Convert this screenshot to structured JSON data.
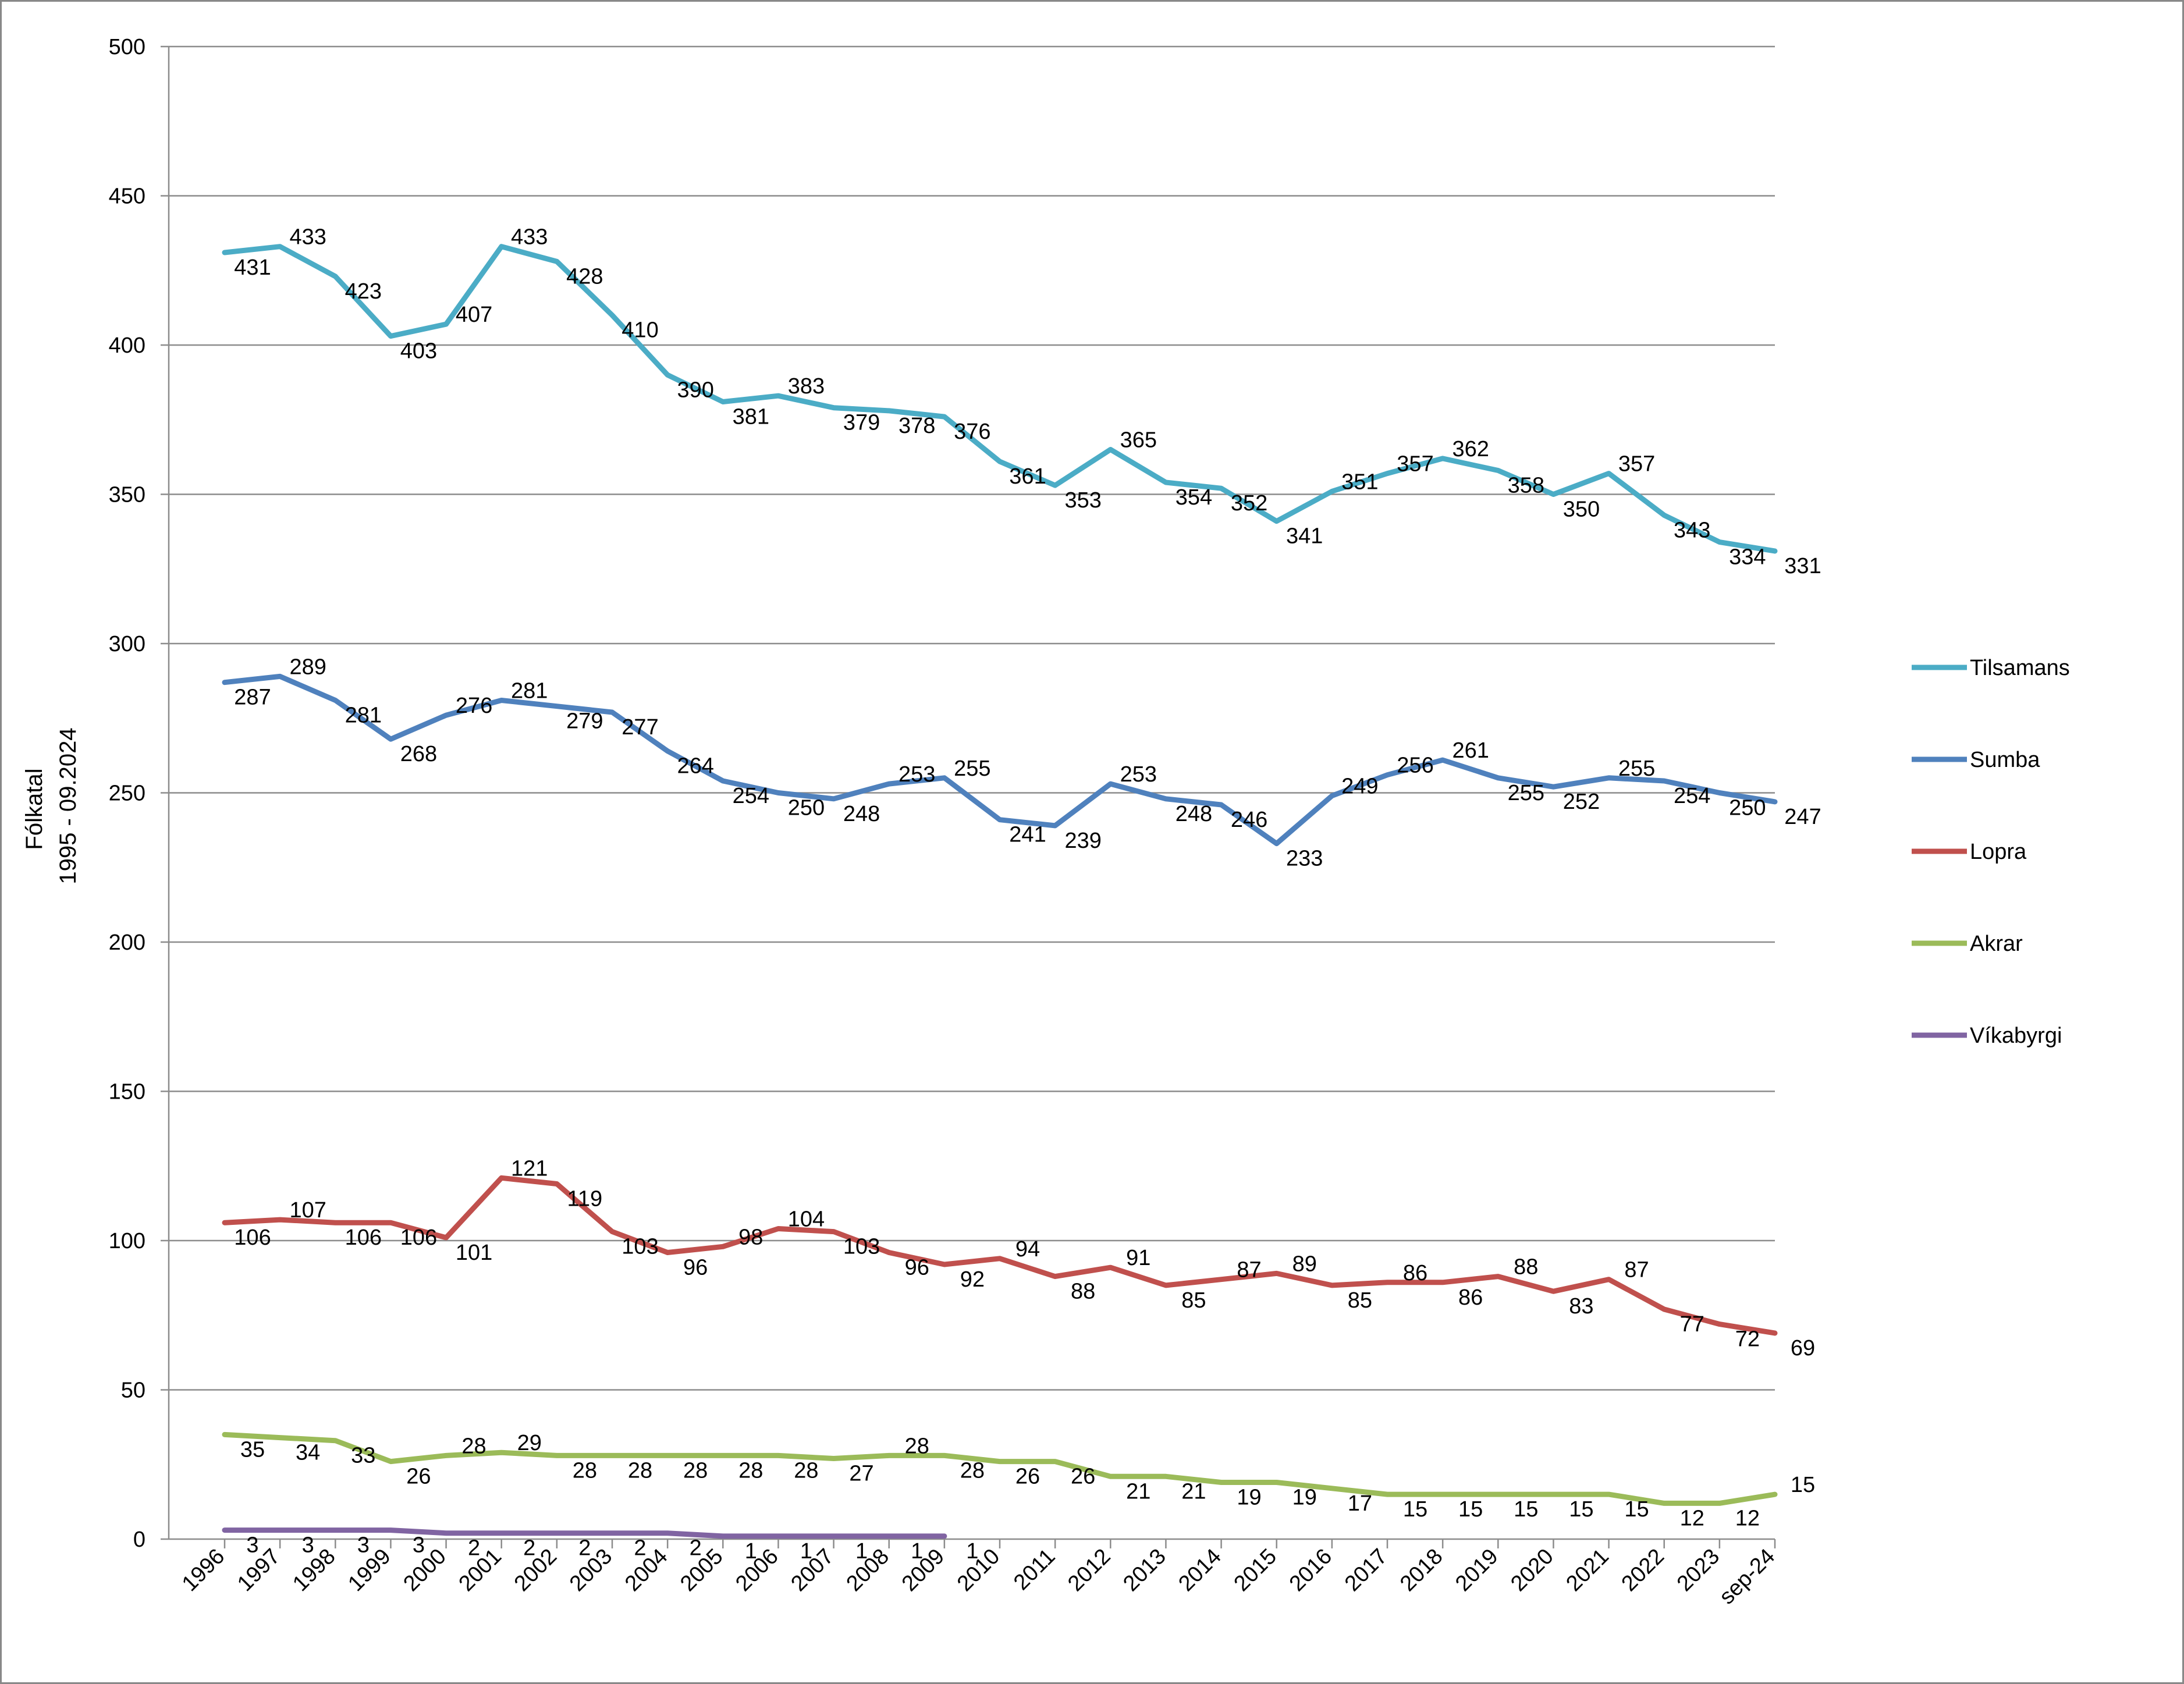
{
  "chart_data": {
    "type": "line",
    "title": "",
    "ylabel": [
      "Fólkatal",
      "1995 - 09.2024"
    ],
    "xlabel": "",
    "ylim": [
      0,
      500
    ],
    "yticks": [
      0,
      50,
      100,
      150,
      200,
      250,
      300,
      350,
      400,
      450,
      500
    ],
    "grid": true,
    "legend_position": "right",
    "categories": [
      "1996",
      "1997",
      "1998",
      "1999",
      "2000",
      "2001",
      "2002",
      "2003",
      "2004",
      "2005",
      "2006",
      "2007",
      "2008",
      "2009",
      "2010",
      "2011",
      "2012",
      "2013",
      "2014",
      "2015",
      "2016",
      "2017",
      "2018",
      "2019",
      "2020",
      "2021",
      "2022",
      "2023",
      "sep-24"
    ],
    "series": [
      {
        "name": "Tilsamans",
        "color": "#4BACC6",
        "values": [
          431,
          433,
          423,
          403,
          407,
          433,
          428,
          410,
          390,
          381,
          383,
          379,
          378,
          376,
          361,
          353,
          365,
          354,
          352,
          341,
          351,
          357,
          362,
          358,
          350,
          357,
          343,
          334,
          331
        ]
      },
      {
        "name": "Sumba",
        "color": "#4F81BD",
        "values": [
          287,
          289,
          281,
          268,
          276,
          281,
          279,
          277,
          264,
          254,
          250,
          248,
          253,
          255,
          241,
          239,
          253,
          248,
          246,
          233,
          249,
          256,
          261,
          255,
          252,
          255,
          254,
          250,
          247
        ]
      },
      {
        "name": "Lopra",
        "color": "#C0504D",
        "values": [
          106,
          107,
          106,
          106,
          101,
          121,
          119,
          103,
          96,
          98,
          104,
          103,
          96,
          92,
          94,
          88,
          91,
          85,
          87,
          89,
          85,
          86,
          86,
          88,
          83,
          87,
          77,
          72,
          69
        ]
      },
      {
        "name": "Akrar",
        "color": "#9BBB59",
        "values": [
          35,
          34,
          33,
          26,
          28,
          29,
          28,
          28,
          28,
          28,
          28,
          27,
          28,
          28,
          26,
          26,
          21,
          21,
          19,
          19,
          17,
          15,
          15,
          15,
          15,
          15,
          12,
          12,
          15
        ]
      },
      {
        "name": "Víkabyrgi",
        "color": "#8064A2",
        "values": [
          3,
          3,
          3,
          3,
          2,
          2,
          2,
          2,
          2,
          1,
          1,
          1,
          1,
          1,
          null,
          null,
          null,
          null,
          null,
          null,
          null,
          null,
          null,
          null,
          null,
          null,
          null,
          null,
          null
        ]
      }
    ]
  }
}
